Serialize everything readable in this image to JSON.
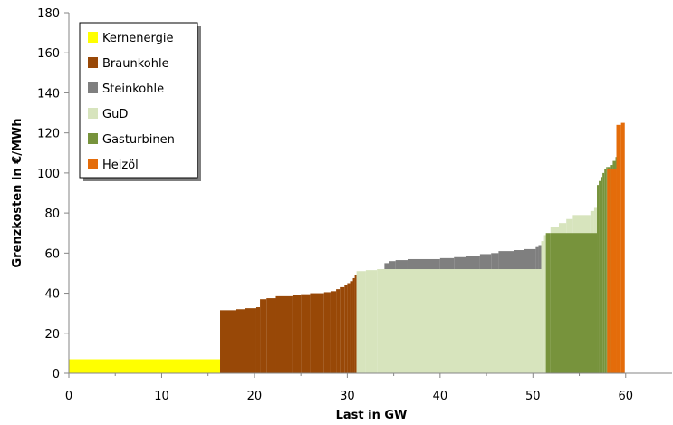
{
  "chart_data": {
    "type": "area",
    "title": "",
    "xlabel": "Last in GW",
    "ylabel": "Grenzkosten in €/MWh",
    "xlim": [
      0,
      65
    ],
    "ylim": [
      0,
      180
    ],
    "xticks": [
      0,
      10,
      20,
      30,
      40,
      50,
      60
    ],
    "yticks": [
      0,
      20,
      40,
      60,
      80,
      100,
      120,
      140,
      160,
      180
    ],
    "grid": false,
    "legend": "top-left",
    "series": [
      {
        "name": "Kernenergie",
        "color": "#ffff00",
        "points": [
          [
            0,
            7
          ],
          [
            16.3,
            7
          ]
        ]
      },
      {
        "name": "Braunkohle",
        "color": "#984807",
        "points": [
          [
            16.3,
            31.5
          ],
          [
            18.0,
            32
          ],
          [
            19.0,
            32.5
          ],
          [
            20.2,
            33
          ],
          [
            20.6,
            37
          ],
          [
            21.3,
            37.5
          ],
          [
            22.3,
            38.5
          ],
          [
            24.1,
            39
          ],
          [
            25.0,
            39.5
          ],
          [
            26.0,
            40
          ],
          [
            27.5,
            40.5
          ],
          [
            28.2,
            41
          ],
          [
            28.8,
            42
          ],
          [
            29.2,
            43
          ],
          [
            29.7,
            44
          ],
          [
            30.0,
            45
          ],
          [
            30.3,
            46
          ],
          [
            30.6,
            47.5
          ],
          [
            30.8,
            49
          ],
          [
            31.0,
            49
          ]
        ]
      },
      {
        "name": "Steinkohle",
        "color": "#7f7f7f",
        "points": [
          [
            33.7,
            52
          ],
          [
            34.0,
            55
          ],
          [
            34.5,
            56
          ],
          [
            35.2,
            56.5
          ],
          [
            36.5,
            57
          ],
          [
            40.0,
            57.5
          ],
          [
            41.5,
            58
          ],
          [
            42.8,
            58.5
          ],
          [
            44.3,
            59.5
          ],
          [
            45.5,
            60
          ],
          [
            46.3,
            61
          ],
          [
            48.0,
            61.5
          ],
          [
            49.0,
            62
          ],
          [
            50.3,
            63
          ],
          [
            50.6,
            64
          ],
          [
            50.9,
            64
          ]
        ]
      },
      {
        "name": "GuD",
        "color": "#d7e4bd",
        "points": [
          [
            31.0,
            51
          ],
          [
            32.0,
            51.5
          ],
          [
            33.2,
            52
          ],
          [
            50.9,
            66
          ],
          [
            51.2,
            69
          ],
          [
            51.9,
            73
          ],
          [
            52.8,
            75
          ],
          [
            53.6,
            77
          ],
          [
            54.3,
            79
          ],
          [
            56.2,
            81
          ],
          [
            56.6,
            83
          ],
          [
            56.9,
            83
          ]
        ]
      },
      {
        "name": "Gasturbinen",
        "color": "#77933c",
        "points": [
          [
            51.4,
            70
          ],
          [
            51.9,
            70
          ],
          [
            56.9,
            94
          ],
          [
            57.1,
            96
          ],
          [
            57.3,
            98
          ],
          [
            57.5,
            100
          ],
          [
            57.7,
            102
          ],
          [
            57.9,
            103
          ],
          [
            58.0,
            103
          ],
          [
            58.3,
            104
          ],
          [
            58.6,
            106
          ],
          [
            58.9,
            108
          ],
          [
            59.0,
            108
          ]
        ]
      },
      {
        "name": "Heizöl",
        "color": "#e46c0a",
        "points": [
          [
            58.0,
            102
          ],
          [
            58.3,
            102
          ],
          [
            59.0,
            124
          ],
          [
            59.5,
            125
          ],
          [
            59.9,
            125
          ]
        ]
      }
    ]
  }
}
